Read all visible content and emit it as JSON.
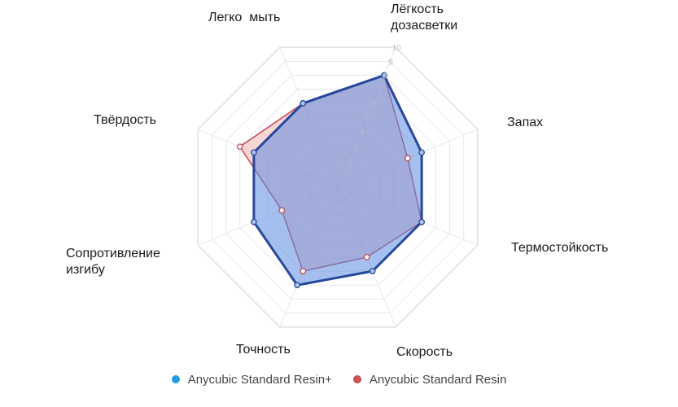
{
  "chart_data": {
    "type": "radar",
    "axes": [
      "Лёгкость\nдозасветки",
      "Запах",
      "Термостойкость",
      "Скорость",
      "Точность",
      "Сопротивление\nизгибу",
      "Твёрдость",
      "Легко  мыть"
    ],
    "range": [
      0,
      10
    ],
    "ticks": [
      1,
      2,
      3,
      4,
      5,
      6,
      7,
      8,
      9,
      10
    ],
    "grid": true,
    "legend_position": "bottom",
    "series": [
      {
        "name": "Anycubic Standard Resin+",
        "values": [
          8,
          6,
          6,
          6,
          7,
          6,
          6,
          6
        ],
        "color": "#27479a",
        "fill": "#5b8de0",
        "marker_color": "#1f9be0"
      },
      {
        "name": "Anycubic Standard Resin",
        "values": [
          8,
          5,
          6,
          5,
          6,
          4,
          7,
          6
        ],
        "color": "#c24a58",
        "fill": "#f2a3a3",
        "marker_color": "#e05050"
      }
    ]
  }
}
